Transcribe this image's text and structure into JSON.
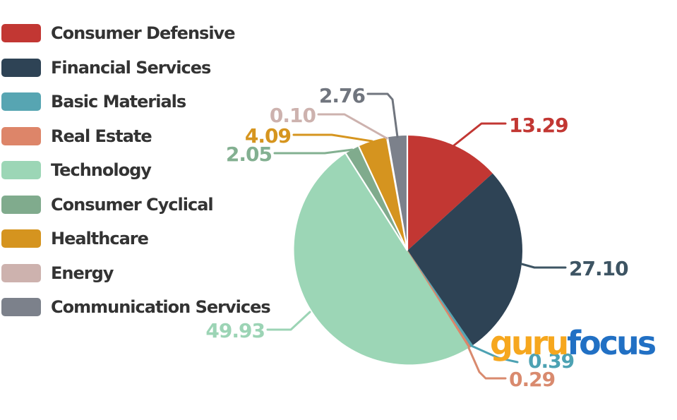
{
  "page": {
    "background": "#ffffff"
  },
  "chart_data": {
    "type": "pie",
    "legend_position": "left",
    "start_angle_deg": 0,
    "clockwise": true,
    "categories": [
      "Consumer Defensive",
      "Financial Services",
      "Basic Materials",
      "Real Estate",
      "Technology",
      "Consumer Cyclical",
      "Healthcare",
      "Energy",
      "Communication Services"
    ],
    "values": [
      13.29,
      27.1,
      0.39,
      0.29,
      49.93,
      2.05,
      4.09,
      0.1,
      2.76
    ],
    "labels_formatted": [
      "13.29",
      "27.10",
      "0.39",
      "0.29",
      "49.93",
      "2.05",
      "4.09",
      "0.10",
      "2.76"
    ],
    "colors": [
      "#c23733",
      "#2e4355",
      "#57a5b2",
      "#dd8569",
      "#9cd6b6",
      "#80ab8d",
      "#d5941f",
      "#cdb2ae",
      "#7c818b"
    ],
    "value_label_colors": [
      "#c23733",
      "#3d5463",
      "#4da2b3",
      "#d98a6e",
      "#9cd4b5",
      "#83b091",
      "#d6951f",
      "#cdb2ae",
      "#70757e"
    ],
    "legend_text_color": "#333333"
  },
  "logo": {
    "part1": "guru",
    "part2": "focus",
    "part1_color": "#f6a71e",
    "part2_color": "#2170c4"
  }
}
